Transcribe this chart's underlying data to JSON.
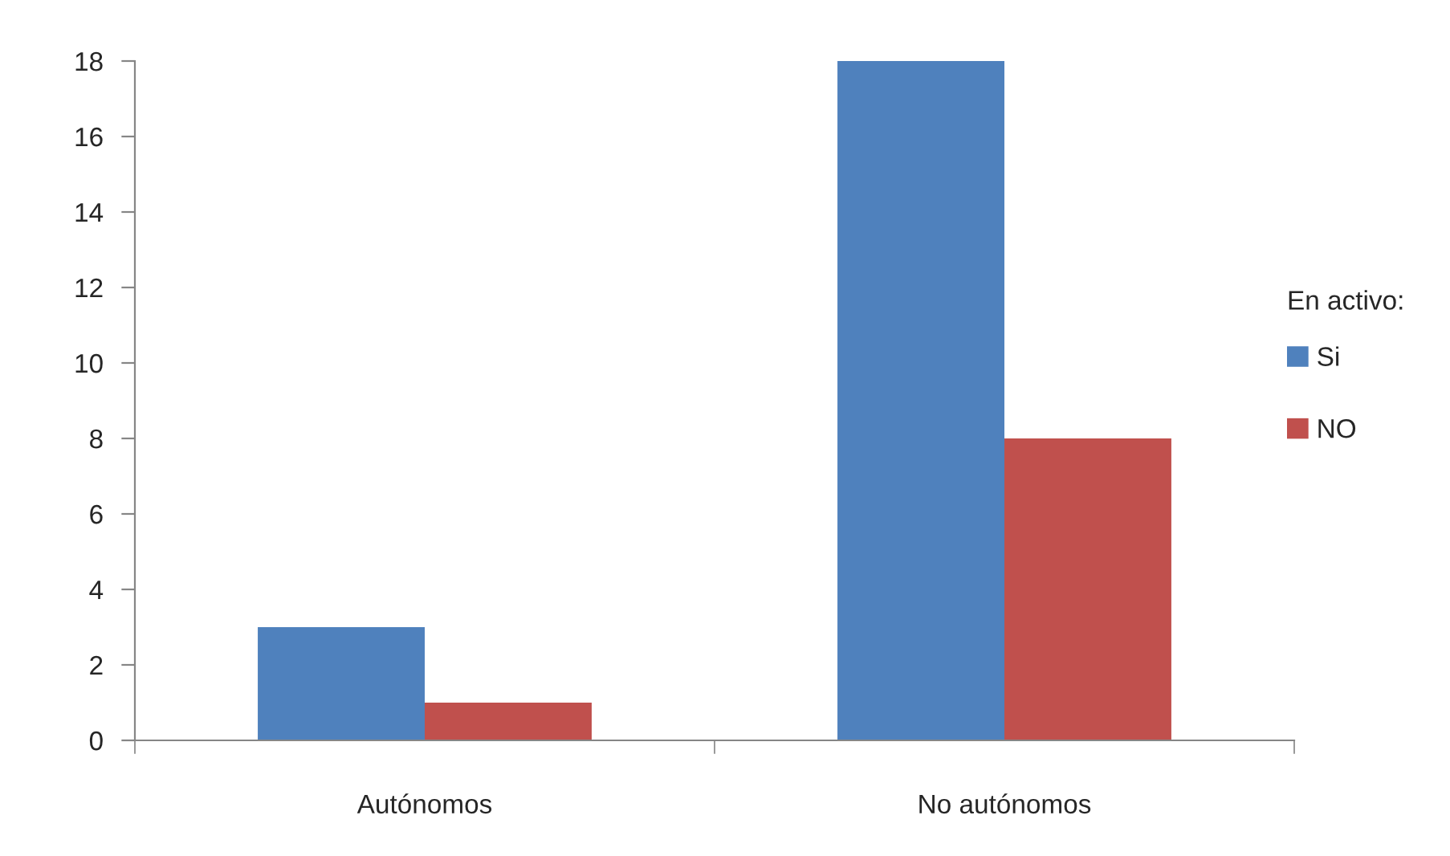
{
  "chart_data": {
    "type": "bar",
    "categories": [
      "Autónomos",
      "No autónomos"
    ],
    "series": [
      {
        "name": "Si",
        "color": "#4f81bd",
        "values": [
          3,
          18
        ]
      },
      {
        "name": "NO",
        "color": "#c0504d",
        "values": [
          1,
          8
        ]
      }
    ],
    "ylim": [
      0,
      18
    ],
    "yticks": [
      0,
      2,
      4,
      6,
      8,
      10,
      12,
      14,
      16,
      18
    ],
    "legend": "right",
    "legend_title": "En activo:"
  }
}
